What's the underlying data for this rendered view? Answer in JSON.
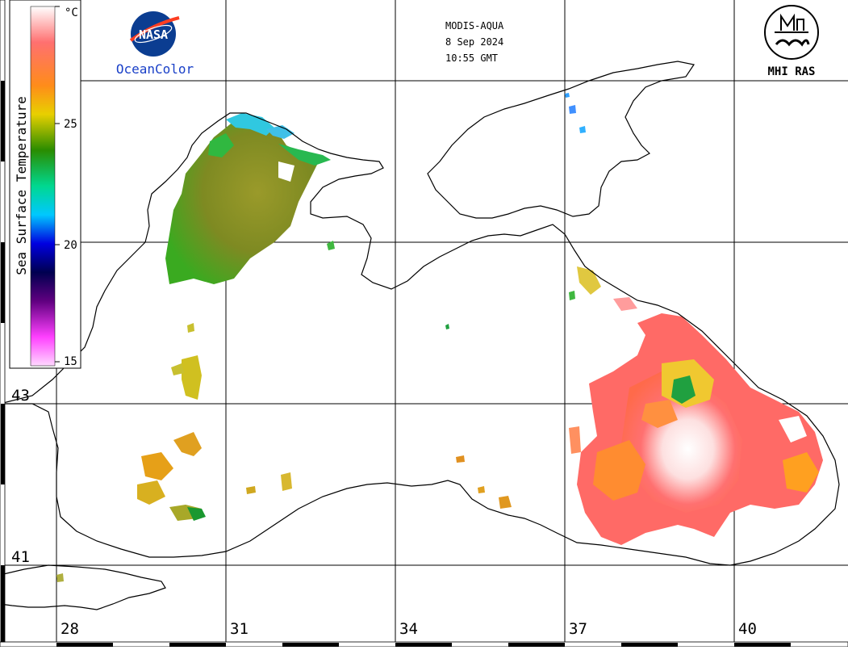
{
  "header": {
    "sensor": "MODIS-AQUA",
    "date": "8 Sep 2024",
    "time": "10:55 GMT",
    "left_logo_text": "OceanColor",
    "right_logo_text": "MHI RAS",
    "nasa_text": "NASA"
  },
  "colorbar": {
    "title": "Sea Surface Temperature",
    "unit": "°C",
    "ticks": [
      "25",
      "20",
      "15"
    ],
    "stops": [
      "#ffffff",
      "#ff6060",
      "#ff8c1a",
      "#e8d000",
      "#2a8c00",
      "#00d890",
      "#00c8ff",
      "#0000e0",
      "#000060",
      "#600080",
      "#ff40ff",
      "#ffd0ff"
    ]
  },
  "grid": {
    "lon_labels": [
      "28",
      "31",
      "34",
      "37",
      "40"
    ],
    "lat_labels": [
      "43",
      "41"
    ]
  }
}
